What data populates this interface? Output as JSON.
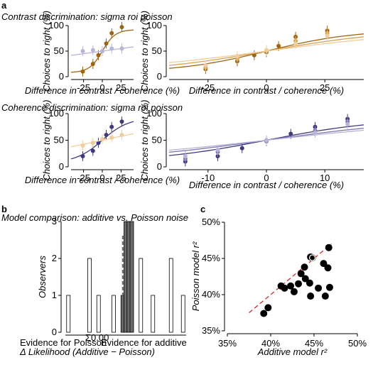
{
  "panel_letters": {
    "a": "a",
    "b": "b",
    "c": "c"
  },
  "colors": {
    "contrast_dark": "#9e6412",
    "contrast_mid": "#d9a24e",
    "contrast_light": "#f0cd9a",
    "coherence_dark": "#3f3a7e",
    "coherence_mid": "#7d76b3",
    "coherence_light": "#b9b5d8",
    "hist_bar": "#ffffff",
    "hist_hatched": "#6a6a6a",
    "ref_line": "#d62828"
  },
  "chart_data": [
    {
      "id": "a-contrast-left",
      "type": "line",
      "title": "Contrast discrimination: sigma roi poisson",
      "xlabel": "Difference in contrast / coherence (%)",
      "ylabel": "Choices to right (%)",
      "xticks": [
        "-25",
        "0",
        "25"
      ],
      "yticks": [
        "0",
        "50",
        "100"
      ],
      "xlim": [
        -40,
        40
      ],
      "ylim": [
        0,
        100
      ],
      "series": [
        {
          "color_key": "contrast_dark",
          "points": [
            [
              -25,
              10
            ],
            [
              -12,
              25
            ],
            [
              -5,
              42
            ],
            [
              5,
              65
            ],
            [
              12,
              85
            ],
            [
              25,
              97
            ]
          ],
          "curve_slope": 0.12
        },
        {
          "color_key": "coherence_light",
          "points": [
            [
              -25,
              50
            ],
            [
              -12,
              52
            ],
            [
              0,
              50
            ],
            [
              12,
              55
            ],
            [
              25,
              55
            ]
          ],
          "curve_slope": 0.01
        }
      ]
    },
    {
      "id": "a-contrast-right",
      "type": "line",
      "xlabel": "Difference in contrast / coherence (%)",
      "ylabel": "Choices to right (%)",
      "xticks": [
        "-25",
        "0",
        "25"
      ],
      "yticks": [
        "0",
        "50",
        "100"
      ],
      "xlim": [
        -40,
        40
      ],
      "ylim": [
        0,
        100
      ],
      "series": [
        {
          "color_key": "contrast_dark",
          "points": [
            [
              -25,
              15
            ],
            [
              -12,
              30
            ],
            [
              -5,
              42
            ],
            [
              0,
              48
            ],
            [
              5,
              60
            ],
            [
              12,
              78
            ],
            [
              25,
              90
            ]
          ],
          "curve_slope": 0.055
        },
        {
          "color_key": "contrast_mid",
          "points": [
            [
              -25,
              18
            ],
            [
              -12,
              35
            ],
            [
              0,
              50
            ],
            [
              12,
              70
            ],
            [
              25,
              85
            ]
          ],
          "curve_slope": 0.04
        },
        {
          "color_key": "contrast_light",
          "points": [
            [
              -25,
              22
            ],
            [
              -12,
              40
            ],
            [
              0,
              52
            ],
            [
              12,
              65
            ],
            [
              25,
              80
            ]
          ],
          "curve_slope": 0.03
        }
      ]
    },
    {
      "id": "a-coherence-left",
      "type": "line",
      "title": "Coherence discrimination: sigma roi poisson",
      "xlabel": "Difference in contrast / coherence (%)",
      "ylabel": "Choices to right (%)",
      "xticks": [
        "-25",
        "0",
        "25"
      ],
      "yticks": [
        "0",
        "50",
        "100"
      ],
      "xlim": [
        -40,
        40
      ],
      "ylim": [
        0,
        100
      ],
      "series": [
        {
          "color_key": "coherence_dark",
          "points": [
            [
              -25,
              20
            ],
            [
              -12,
              30
            ],
            [
              -5,
              45
            ],
            [
              5,
              60
            ],
            [
              12,
              75
            ],
            [
              25,
              85
            ]
          ],
          "curve_slope": 0.06
        },
        {
          "color_key": "contrast_light",
          "points": [
            [
              -25,
              40
            ],
            [
              -12,
              45
            ],
            [
              0,
              52
            ],
            [
              12,
              55
            ],
            [
              25,
              60
            ]
          ],
          "curve_slope": 0.015
        }
      ]
    },
    {
      "id": "a-coherence-right",
      "type": "line",
      "xlabel": "Difference in contrast / coherence (%)",
      "ylabel": "Choices to right (%)",
      "xticks": [
        "-10",
        "0",
        "10"
      ],
      "yticks": [
        "0",
        "50",
        "100"
      ],
      "xlim": [
        -12,
        12
      ],
      "ylim": [
        0,
        100
      ],
      "series": [
        {
          "color_key": "coherence_dark",
          "points": [
            [
              -10,
              10
            ],
            [
              -6,
              20
            ],
            [
              -3,
              35
            ],
            [
              0,
              50
            ],
            [
              3,
              62
            ],
            [
              6,
              75
            ],
            [
              10,
              90
            ]
          ],
          "curve_slope": 0.14
        },
        {
          "color_key": "coherence_mid",
          "points": [
            [
              -10,
              15
            ],
            [
              -6,
              28
            ],
            [
              0,
              48
            ],
            [
              6,
              68
            ],
            [
              10,
              85
            ]
          ],
          "curve_slope": 0.1
        },
        {
          "color_key": "coherence_light",
          "points": [
            [
              -10,
              20
            ],
            [
              -6,
              32
            ],
            [
              0,
              50
            ],
            [
              6,
              64
            ],
            [
              10,
              80
            ]
          ],
          "curve_slope": 0.08
        }
      ]
    },
    {
      "id": "b-histogram",
      "type": "bar",
      "title": "Model comparison: additive vs. Poisson noise",
      "xlabel": "Δ Likelihood (Additive − Poisson)",
      "ylabel": "Observers",
      "x_annot_left": "Evidence for Poisson",
      "x_annot_right": "Evidence for additive",
      "x_tick_text": "Σ0.00",
      "yticks": [
        "0",
        "1",
        "2",
        "3"
      ],
      "ylim": [
        0,
        3
      ],
      "bars": [
        {
          "pos": -0.95,
          "value": 1
        },
        {
          "pos": -0.6,
          "value": 2
        },
        {
          "pos": -0.45,
          "value": 1
        },
        {
          "pos": -0.2,
          "value": 1
        },
        {
          "pos": -0.05,
          "value": 1
        },
        {
          "pos": 0.0,
          "value": 3
        },
        {
          "pos": 0.05,
          "value": 3
        },
        {
          "pos": 0.1,
          "value": 3
        },
        {
          "pos": 0.25,
          "value": 2
        },
        {
          "pos": 0.45,
          "value": 1
        },
        {
          "pos": 0.75,
          "value": 2
        },
        {
          "pos": 0.95,
          "value": 1
        }
      ],
      "dashed_line_at": -0.05
    },
    {
      "id": "c-scatter",
      "type": "scatter",
      "xlabel": "Additive model r²",
      "ylabel": "Poisson model r²",
      "xticks": [
        "35%",
        "40%",
        "45%",
        "50%"
      ],
      "yticks": [
        "35%",
        "40%",
        "45%",
        "50%"
      ],
      "xlim": [
        35,
        50
      ],
      "ylim": [
        35,
        50
      ],
      "points": [
        [
          39.2,
          37.4
        ],
        [
          39.7,
          38.2
        ],
        [
          41.2,
          41.2
        ],
        [
          41.6,
          40.9
        ],
        [
          42.3,
          41.2
        ],
        [
          42.7,
          40.4
        ],
        [
          43.2,
          41.5
        ],
        [
          43.5,
          42.9
        ],
        [
          43.9,
          43.8
        ],
        [
          44.0,
          42.2
        ],
        [
          44.5,
          41.6
        ],
        [
          44.6,
          39.8
        ],
        [
          44.6,
          45.2
        ],
        [
          45.5,
          40.9
        ],
        [
          46.1,
          44.3
        ],
        [
          46.3,
          39.8
        ],
        [
          46.6,
          43.7
        ],
        [
          46.8,
          41.0
        ],
        [
          46.7,
          46.5
        ],
        [
          44.8,
          45.1
        ]
      ],
      "open_points": [
        [
          44.8,
          45.1
        ]
      ]
    }
  ]
}
